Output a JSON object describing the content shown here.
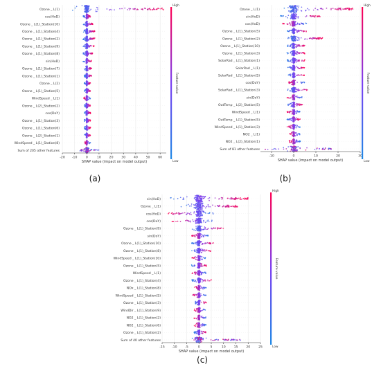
{
  "colors": {
    "low": "#1e88e5",
    "mid": "#7b3ff2",
    "high": "#ff0052",
    "grid": "#e9e9e9",
    "axis": "#333333",
    "sum_row_gray": "#9aa0a6"
  },
  "chart_data": [
    {
      "type": "scatter",
      "subtype": "shap-beeswarm",
      "panel_label": "(a)",
      "xlabel": "SHAP value (impact on model output)",
      "colorbar_label": "Feature value",
      "colorbar_high": "High",
      "colorbar_low": "Low",
      "xlim": [
        -20,
        65
      ],
      "xticks": [
        -20,
        -10,
        0,
        10,
        20,
        30,
        40,
        50,
        60
      ],
      "grid": true,
      "features": [
        {
          "name": "Ozone _ L(1)",
          "min": -15,
          "max": 63,
          "low_side": "left",
          "spread": 1.0
        },
        {
          "name": "cos(HoD)",
          "min": -3,
          "max": 3,
          "low_side": "left",
          "spread": 0.45
        },
        {
          "name": "Ozone _ L(1)_Station(10)",
          "min": -3,
          "max": 5,
          "low_side": "left",
          "spread": 0.5
        },
        {
          "name": "Ozone _ L(1)_Station(4)",
          "min": -3,
          "max": 7,
          "low_side": "left",
          "spread": 0.55
        },
        {
          "name": "Ozone _ L(1)_Station(2)",
          "min": -3,
          "max": 7,
          "low_side": "left",
          "spread": 0.55
        },
        {
          "name": "Ozone _ L(1)_Station(9)",
          "min": -3,
          "max": 6,
          "low_side": "left",
          "spread": 0.5
        },
        {
          "name": "Ozone _ L(1)_Station(8)",
          "min": -3,
          "max": 5,
          "low_side": "left",
          "spread": 0.5
        },
        {
          "name": "sin(HoD)",
          "min": -3,
          "max": 4,
          "low_side": "left",
          "spread": 0.45
        },
        {
          "name": "Ozone _ L(1)_Station(7)",
          "min": -2,
          "max": 4,
          "low_side": "left",
          "spread": 0.45
        },
        {
          "name": "Ozone _ L(1)_Station(1)",
          "min": -2,
          "max": 4,
          "low_side": "left",
          "spread": 0.45
        },
        {
          "name": "Ozone _ L(2)",
          "min": -2,
          "max": 3,
          "low_side": "left",
          "spread": 0.4
        },
        {
          "name": "Ozone _ L(1)_Station(5)",
          "min": -2,
          "max": 3,
          "low_side": "left",
          "spread": 0.4
        },
        {
          "name": "WindSpeed _ L(1)",
          "min": -3,
          "max": 3,
          "low_side": "right",
          "spread": 0.45
        },
        {
          "name": "Ozone _ L(2)_Station(2)",
          "min": -2,
          "max": 3,
          "low_side": "left",
          "spread": 0.4
        },
        {
          "name": "cos(DoY)",
          "min": -2,
          "max": 3,
          "low_side": "left",
          "spread": 0.4
        },
        {
          "name": "Ozone _ L(1)_Station(3)",
          "min": -2,
          "max": 3,
          "low_side": "left",
          "spread": 0.4
        },
        {
          "name": "Ozone _ L(1)_Station(6)",
          "min": -2,
          "max": 3,
          "low_side": "left",
          "spread": 0.4
        },
        {
          "name": "Ozone _ L(2)_Station(1)",
          "min": -2,
          "max": 3,
          "low_side": "left",
          "spread": 0.4
        },
        {
          "name": "WindSpeed _ L(1)_Station(8)",
          "min": -2,
          "max": 3,
          "low_side": "right",
          "spread": 0.4
        },
        {
          "name": "Sum of 205 other features",
          "min": -6,
          "max": 10,
          "low_side": "mixed",
          "spread": 0.6,
          "is_sum": true
        }
      ]
    },
    {
      "type": "scatter",
      "subtype": "shap-beeswarm",
      "panel_label": "(b)",
      "xlabel": "SHAP value (impact on model output)",
      "colorbar_label": "Feature value",
      "colorbar_high": "High",
      "colorbar_low": "Low",
      "xlim": [
        -15,
        30
      ],
      "xticks": [
        -10,
        0,
        10,
        20,
        30
      ],
      "grid": true,
      "features": [
        {
          "name": "Ozone _ L(1)",
          "min": -6,
          "max": 27,
          "low_side": "left",
          "spread": 1.0
        },
        {
          "name": "sin(HoD)",
          "min": -6,
          "max": 12,
          "low_side": "left",
          "spread": 0.55
        },
        {
          "name": "cos(HoD)",
          "min": -5,
          "max": 6,
          "low_side": "right",
          "spread": 0.5
        },
        {
          "name": "Ozone _ L(1)_Station(5)",
          "min": -3,
          "max": 6,
          "low_side": "left",
          "spread": 0.5
        },
        {
          "name": "Ozone _ L(1)_Station(2)",
          "min": -3,
          "max": 13,
          "low_side": "left",
          "spread": 0.55
        },
        {
          "name": "Ozone _ L(1)_Station(10)",
          "min": -3,
          "max": 5,
          "low_side": "left",
          "spread": 0.5
        },
        {
          "name": "Ozone _ L(1)_Station(3)",
          "min": -3,
          "max": 5,
          "low_side": "left",
          "spread": 0.5
        },
        {
          "name": "SolarRad _ L(1)_Station(1)",
          "min": -3,
          "max": 5,
          "low_side": "left",
          "spread": 0.5
        },
        {
          "name": "SolarRad _ L(1)",
          "min": -3,
          "max": 5,
          "low_side": "left",
          "spread": 0.5
        },
        {
          "name": "SolarRad _ L(1)_Station(5)",
          "min": -3,
          "max": 5,
          "low_side": "left",
          "spread": 0.45
        },
        {
          "name": "cos(DoY)",
          "min": -3,
          "max": 5,
          "low_side": "right",
          "spread": 0.45
        },
        {
          "name": "SolarRad _ L(1)_Station(3)",
          "min": -3,
          "max": 7,
          "low_side": "left",
          "spread": 0.45
        },
        {
          "name": "sin(DoY)",
          "min": -3,
          "max": 4,
          "low_side": "right",
          "spread": 0.45
        },
        {
          "name": "OutTemp _ L(2)_Station(5)",
          "min": -3,
          "max": 4,
          "low_side": "left",
          "spread": 0.45
        },
        {
          "name": "WindSpeed _ L(1)",
          "min": -3,
          "max": 3,
          "low_side": "right",
          "spread": 0.45
        },
        {
          "name": "OutTemp _ L(1)_Station(5)",
          "min": -3,
          "max": 3,
          "low_side": "left",
          "spread": 0.45
        },
        {
          "name": "WindSpeed _ L(1)_Station(3)",
          "min": -3,
          "max": 3,
          "low_side": "right",
          "spread": 0.45
        },
        {
          "name": "NO2 _ L(1)",
          "min": -2,
          "max": 3,
          "low_side": "right",
          "spread": 0.4
        },
        {
          "name": "NO2 _ L(2)_Station(1)",
          "min": -2,
          "max": 3,
          "low_side": "right",
          "spread": 0.4
        },
        {
          "name": "Sum of 81 other features",
          "min": -13,
          "max": 17,
          "low_side": "mixed",
          "spread": 0.55,
          "is_sum": true
        }
      ]
    },
    {
      "type": "scatter",
      "subtype": "shap-beeswarm",
      "panel_label": "(c)",
      "xlabel": "SHAP value (impact on model output)",
      "colorbar_label": "Feature value",
      "colorbar_high": "High",
      "colorbar_low": "Low",
      "xlim": [
        -15,
        25
      ],
      "xticks": [
        -15,
        -10,
        -5,
        0,
        5,
        10,
        15,
        20,
        25
      ],
      "grid": true,
      "features": [
        {
          "name": "sin(HoD)",
          "min": -13,
          "max": 20,
          "low_side": "left",
          "spread": 1.0
        },
        {
          "name": "Ozone _ L(1)",
          "min": -8,
          "max": 16,
          "low_side": "left",
          "spread": 0.9
        },
        {
          "name": "cos(HoD)",
          "min": -13,
          "max": 6,
          "low_side": "right",
          "spread": 0.65
        },
        {
          "name": "cos(DoY)",
          "min": -11,
          "max": 6,
          "low_side": "right",
          "spread": 0.6
        },
        {
          "name": "Ozone _ L(1)_Station(9)",
          "min": -3,
          "max": 10,
          "low_side": "left",
          "spread": 0.55
        },
        {
          "name": "sin(DoY)",
          "min": -3,
          "max": 4,
          "low_side": "right",
          "spread": 0.5
        },
        {
          "name": "Ozone _ L(1)_Station(10)",
          "min": -3,
          "max": 6,
          "low_side": "left",
          "spread": 0.5
        },
        {
          "name": "Ozone _ L(1)_Station(8)",
          "min": -3,
          "max": 5,
          "low_side": "left",
          "spread": 0.5
        },
        {
          "name": "WindSpeed _ L(1)_Station(10)",
          "min": -3,
          "max": 3,
          "low_side": "right",
          "spread": 0.45
        },
        {
          "name": "Ozone _ L(1)_Station(5)",
          "min": -3,
          "max": 3,
          "low_side": "left",
          "spread": 0.45
        },
        {
          "name": "WindSpeed _ L(1)",
          "min": -3,
          "max": 3,
          "low_side": "right",
          "spread": 0.45
        },
        {
          "name": "Ozone _ L(1)_Station(4)",
          "min": -3,
          "max": 5,
          "low_side": "left",
          "spread": 0.45
        },
        {
          "name": "NOx _ L(1)_Station(8)",
          "min": -2,
          "max": 3,
          "low_side": "right",
          "spread": 0.4
        },
        {
          "name": "WindSpeed _ L(1)_Station(5)",
          "min": -3,
          "max": 3,
          "low_side": "right",
          "spread": 0.45
        },
        {
          "name": "Ozone _ L(1)_Station(3)",
          "min": -2,
          "max": 3,
          "low_side": "left",
          "spread": 0.4
        },
        {
          "name": "WindDir _ L(1)_Station(9)",
          "min": -2,
          "max": 3,
          "low_side": "right",
          "spread": 0.4
        },
        {
          "name": "NO2 _ L(1)_Station(2)",
          "min": -2,
          "max": 3,
          "low_side": "right",
          "spread": 0.4
        },
        {
          "name": "NO2 _ L(1)_Station(6)",
          "min": -2,
          "max": 3,
          "low_side": "right",
          "spread": 0.4
        },
        {
          "name": "Ozone _ L(1)_Station(2)",
          "min": -2,
          "max": 3,
          "low_side": "left",
          "spread": 0.4
        },
        {
          "name": "Sum of 40 other features",
          "min": -5,
          "max": 17,
          "low_side": "mixed",
          "spread": 0.55,
          "is_sum": true
        }
      ]
    }
  ]
}
